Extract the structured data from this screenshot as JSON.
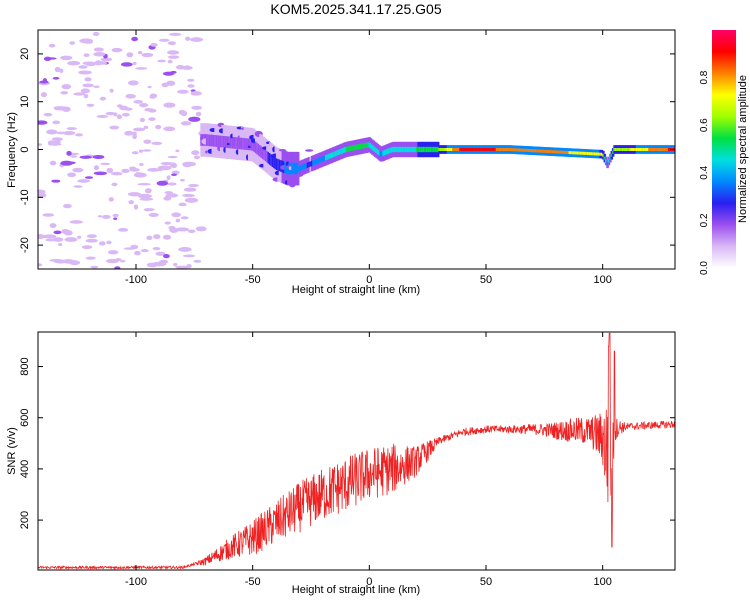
{
  "title": "KOM5.2025.341.17.25.G05",
  "chart_data": [
    {
      "type": "heatmap",
      "xlabel": "Height of straight line (km)",
      "ylabel": "Frequency (Hz)",
      "xlim": [
        -142,
        131
      ],
      "ylim": [
        -25,
        25
      ],
      "xticks": [
        -100,
        -50,
        0,
        50,
        100
      ],
      "yticks": [
        -20,
        -10,
        0,
        10,
        20
      ],
      "colorbar": {
        "label": "Normalized spectral amplitude",
        "range": [
          0,
          1
        ],
        "ticks": [
          0.0,
          0.2,
          0.4,
          0.6,
          0.8
        ],
        "colors": [
          "#ffffff",
          "#d9b8f5",
          "#9b4ff0",
          "#2a1ff0",
          "#0089ff",
          "#00e0e0",
          "#00e040",
          "#a0ff00",
          "#ffff00",
          "#ff8000",
          "#ff0000",
          "#ff0066"
        ]
      },
      "ridge": {
        "x": [
          -70,
          -60,
          -50,
          -40,
          -35,
          -30,
          -25,
          -20,
          -10,
          0,
          5,
          10,
          20,
          28,
          40,
          60,
          80,
          100,
          102,
          105,
          131
        ],
        "freq": [
          2,
          1.5,
          1,
          -3,
          -4,
          -4,
          -3,
          -2,
          0,
          1,
          -1,
          0,
          0,
          0,
          0,
          0,
          -0.5,
          -1,
          -3,
          0,
          0
        ],
        "amplitude": [
          0.15,
          0.2,
          0.18,
          0.25,
          0.35,
          0.35,
          0.3,
          0.4,
          0.5,
          0.5,
          0.4,
          0.45,
          0.5,
          0.55,
          0.9,
          0.85,
          0.8,
          0.7,
          0.4,
          0.6,
          0.9
        ]
      },
      "noise_region_x": [
        -142,
        -72
      ]
    },
    {
      "type": "line",
      "xlabel": "Height of straight line (km)",
      "ylabel": "SNR (v/v)",
      "xlim": [
        -142,
        131
      ],
      "ylim": [
        5,
        935
      ],
      "xticks": [
        -100,
        -50,
        0,
        50,
        100
      ],
      "yticks": [
        200,
        400,
        600,
        800
      ],
      "color": "#ee2222",
      "trend": {
        "x": [
          -142,
          -80,
          -70,
          -60,
          -50,
          -40,
          -30,
          -20,
          -10,
          0,
          10,
          20,
          25,
          30,
          40,
          50,
          60,
          70,
          80,
          90,
          95,
          100,
          103,
          104,
          105,
          110,
          120,
          131
        ],
        "y": [
          15,
          15,
          40,
          90,
          130,
          190,
          250,
          300,
          340,
          380,
          400,
          430,
          470,
          510,
          545,
          555,
          555,
          555,
          550,
          550,
          545,
          520,
          430,
          400,
          560,
          565,
          570,
          575
        ]
      },
      "amplitude_spread": {
        "x": [
          -142,
          -75,
          -65,
          -50,
          -30,
          -10,
          10,
          25,
          30,
          60,
          75,
          85,
          95,
          100,
          102,
          106,
          110,
          131
        ],
        "y": [
          5,
          5,
          30,
          70,
          100,
          110,
          100,
          40,
          15,
          15,
          25,
          45,
          60,
          110,
          260,
          40,
          15,
          15
        ]
      },
      "spike_events": [
        {
          "x": 103,
          "y": 930
        },
        {
          "x": 104,
          "y": 95
        },
        {
          "x": 102.5,
          "y": 880
        },
        {
          "x": 105,
          "y": 860
        }
      ]
    }
  ]
}
